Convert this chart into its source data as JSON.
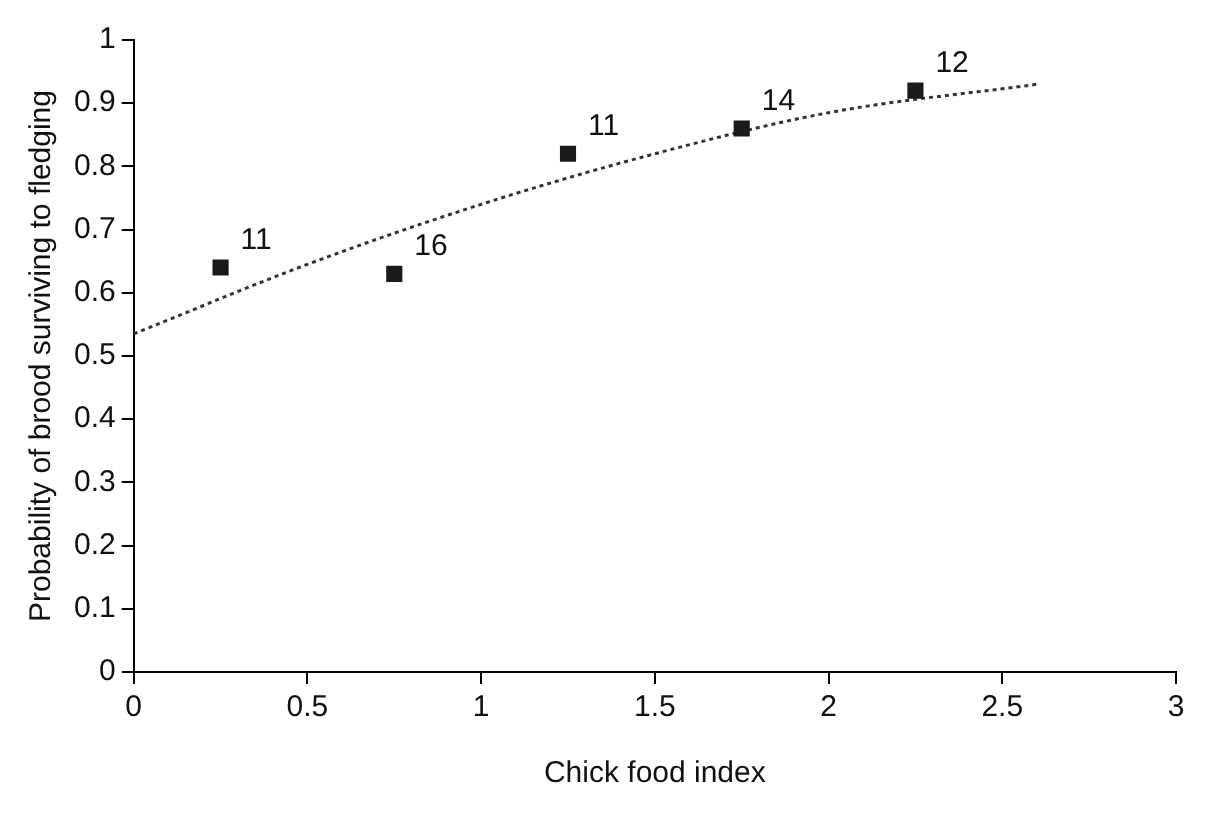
{
  "chart_data": {
    "type": "scatter",
    "xlabel": "Chick food index",
    "ylabel": "Probability of brood surviving to fledging",
    "xlim": [
      0,
      3
    ],
    "xticks": [
      0,
      0.5,
      1,
      1.5,
      2,
      2.5,
      3
    ],
    "ylim": [
      0,
      1
    ],
    "yticks": [
      0,
      0.1,
      0.2,
      0.3,
      0.4,
      0.5,
      0.6,
      0.7,
      0.8,
      0.9,
      1
    ],
    "grid": false,
    "legend": false,
    "marker": "square",
    "series": [
      {
        "type": "scatter",
        "color": "#1a1a1a",
        "x": [
          0.25,
          0.75,
          1.25,
          1.75,
          2.25
        ],
        "values": [
          0.64,
          0.63,
          0.82,
          0.86,
          0.92
        ]
      },
      {
        "type": "line",
        "color": "#333333",
        "line_style": "dotted",
        "marker": "none",
        "x": [
          0,
          0.5,
          1,
          1.5,
          2,
          2.6
        ],
        "values": [
          0.535,
          0.645,
          0.74,
          0.82,
          0.885,
          0.93
        ]
      }
    ],
    "annotations": [
      {
        "text": "11",
        "x": 0.25,
        "y": 0.64
      },
      {
        "text": "16",
        "x": 0.75,
        "y": 0.63
      },
      {
        "text": "11",
        "x": 1.25,
        "y": 0.82
      },
      {
        "text": "14",
        "x": 1.75,
        "y": 0.86
      },
      {
        "text": "12",
        "x": 2.25,
        "y": 0.92
      }
    ]
  }
}
